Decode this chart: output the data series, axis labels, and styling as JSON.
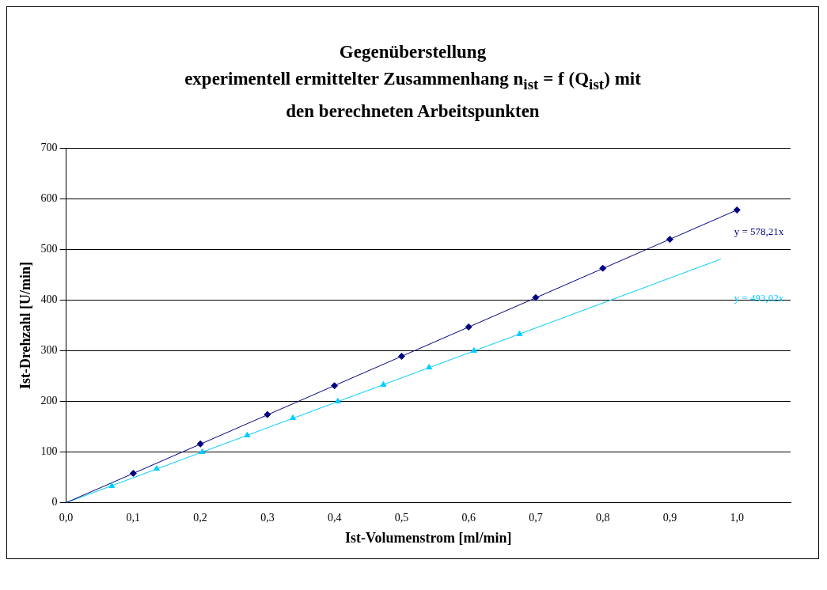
{
  "chart_data": {
    "type": "scatter",
    "title": "Gegenüberstellung\nexperimentell ermittelter Zusammenhang n$_{ist}$ = f (Q$_{ist}$) mit\nden berechneten Arbeitspunkten",
    "xlabel": "Ist-Volumenstrom [ml/min]",
    "ylabel": "Ist-Drehzahl [U/min]",
    "series": [
      {
        "color": "#000080",
        "marker": "diamond",
        "x": [
          0.1,
          0.2,
          0.3,
          0.4,
          0.5,
          0.6,
          0.7,
          0.8,
          0.9,
          1.0
        ],
        "values": [
          58,
          116,
          174,
          231,
          289,
          347,
          405,
          463,
          520,
          578
        ]
      },
      {
        "color": "#00ccff",
        "marker": "triangle",
        "x": [
          0.068,
          0.135,
          0.203,
          0.27,
          0.338,
          0.405,
          0.473,
          0.541,
          0.608,
          0.676
        ],
        "values": [
          33,
          67,
          100,
          133,
          167,
          200,
          233,
          267,
          300,
          333
        ]
      },
      {
        "type": "line",
        "color": "#000080",
        "marker": "none",
        "x": [
          0,
          1.0
        ],
        "values": [
          0,
          578
        ]
      },
      {
        "type": "line",
        "color": "#00ccff",
        "marker": "none",
        "x": [
          0,
          0.976
        ],
        "values": [
          0,
          481
        ]
      }
    ],
    "annotations": [
      "y = 578,21x",
      "y = 493,02x"
    ],
    "xlim": [
      0,
      1.08
    ],
    "xticks": [
      {
        "value": 0,
        "label": "0,0"
      },
      {
        "value": 0.1,
        "label": "0,1"
      },
      {
        "value": 0.2,
        "label": "0,2"
      },
      {
        "value": 0.3,
        "label": "0,3"
      },
      {
        "value": 0.4,
        "label": "0,4"
      },
      {
        "value": 0.5,
        "label": "0,5"
      },
      {
        "value": 0.6,
        "label": "0,6"
      },
      {
        "value": 0.7,
        "label": "0,7"
      },
      {
        "value": 0.8,
        "label": "0,8"
      },
      {
        "value": 0.9,
        "label": "0,9"
      },
      {
        "value": 1.0,
        "label": "1,0"
      }
    ],
    "ylim": [
      0,
      700
    ],
    "yticks": [
      0,
      100,
      200,
      300,
      400,
      500,
      600,
      700
    ],
    "grid": "y",
    "legend": false
  }
}
